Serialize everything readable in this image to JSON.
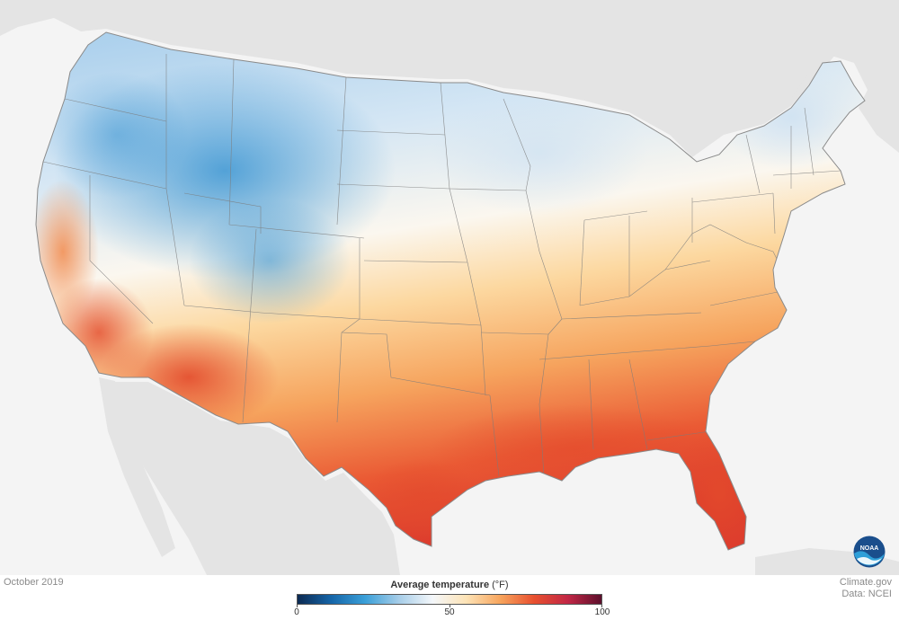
{
  "map": {
    "date_label": "October 2019",
    "legend": {
      "title": "Average temperature",
      "unit": "(°F)",
      "min": 0,
      "max": 100,
      "ticks": [
        "0",
        "50",
        "100"
      ],
      "tick_values": [
        0,
        50,
        100
      ],
      "colors": [
        "#0c2a52",
        "#1565a8",
        "#3a9fd8",
        "#a6cde8",
        "#f4f7fa",
        "#fde3b6",
        "#f7a55d",
        "#e8502f",
        "#c22745",
        "#5c0f2c"
      ]
    },
    "credits": {
      "site": "Climate.gov",
      "source": "Data: NCEI"
    },
    "logo_text": "NOAA"
  }
}
